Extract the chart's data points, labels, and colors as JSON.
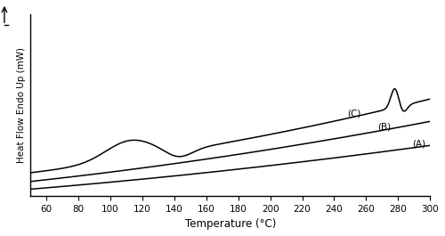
{
  "xlim": [
    50,
    300
  ],
  "ylim": [
    -0.3,
    8.0
  ],
  "xticks": [
    60,
    80,
    100,
    120,
    140,
    160,
    180,
    200,
    220,
    240,
    260,
    280,
    300
  ],
  "xlabel": "Temperature (°C)",
  "ylabel": "Heat Flow Endo Up (mW)",
  "bg_color": "#ffffff",
  "line_color": "#000000",
  "label_A": "(A)",
  "label_B": "(B)",
  "label_C": "(C)"
}
